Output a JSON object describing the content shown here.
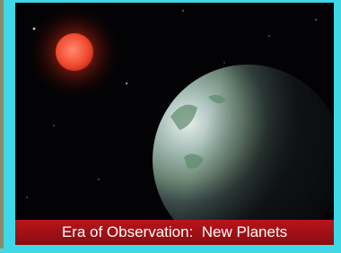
{
  "caption": "Era of Observation:  New Planets"
}
